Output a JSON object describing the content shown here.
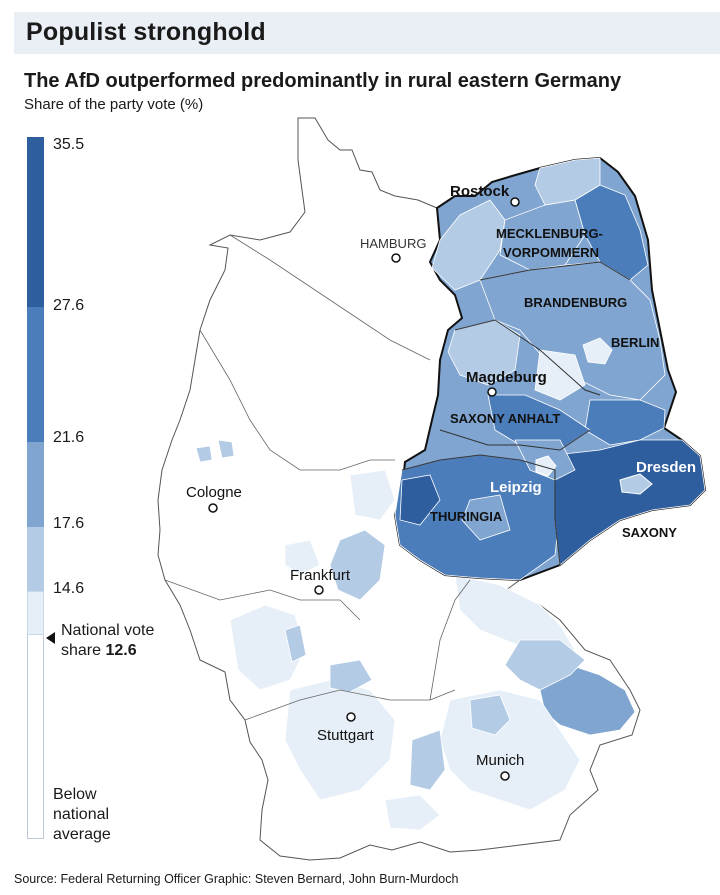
{
  "header": {
    "title": "Populist stronghold",
    "subtitle": "The AfD outperformed predominantly in rural eastern Germany",
    "unit": "Share of the party vote (%)"
  },
  "legend": {
    "ticks": [
      "35.5",
      "27.6",
      "21.6",
      "17.6",
      "14.6"
    ],
    "national_line1": "National vote",
    "national_line2": "share",
    "national_value": "12.6",
    "below_lines": [
      "Below",
      "national",
      "average"
    ],
    "colors": [
      "#2f5e9f",
      "#4b7dba",
      "#7fa5d0",
      "#b3cbe4",
      "#e6eff7",
      "#ffffff"
    ]
  },
  "map": {
    "cities": [
      "Rostock",
      "HAMBURG",
      "Cologne",
      "Frankfurt",
      "Stuttgart",
      "Munich",
      "Magdeburg",
      "Leipzig",
      "Dresden",
      "BERLIN"
    ],
    "states": [
      "MECKLENBURG-",
      "VORPOMMERN",
      "BRANDENBURG",
      "SAXONY ANHALT",
      "THURINGIA",
      "SAXONY"
    ]
  },
  "footer": {
    "source": "Source: Federal Returning Officer    Graphic: Steven Bernard, John Burn-Murdoch"
  }
}
